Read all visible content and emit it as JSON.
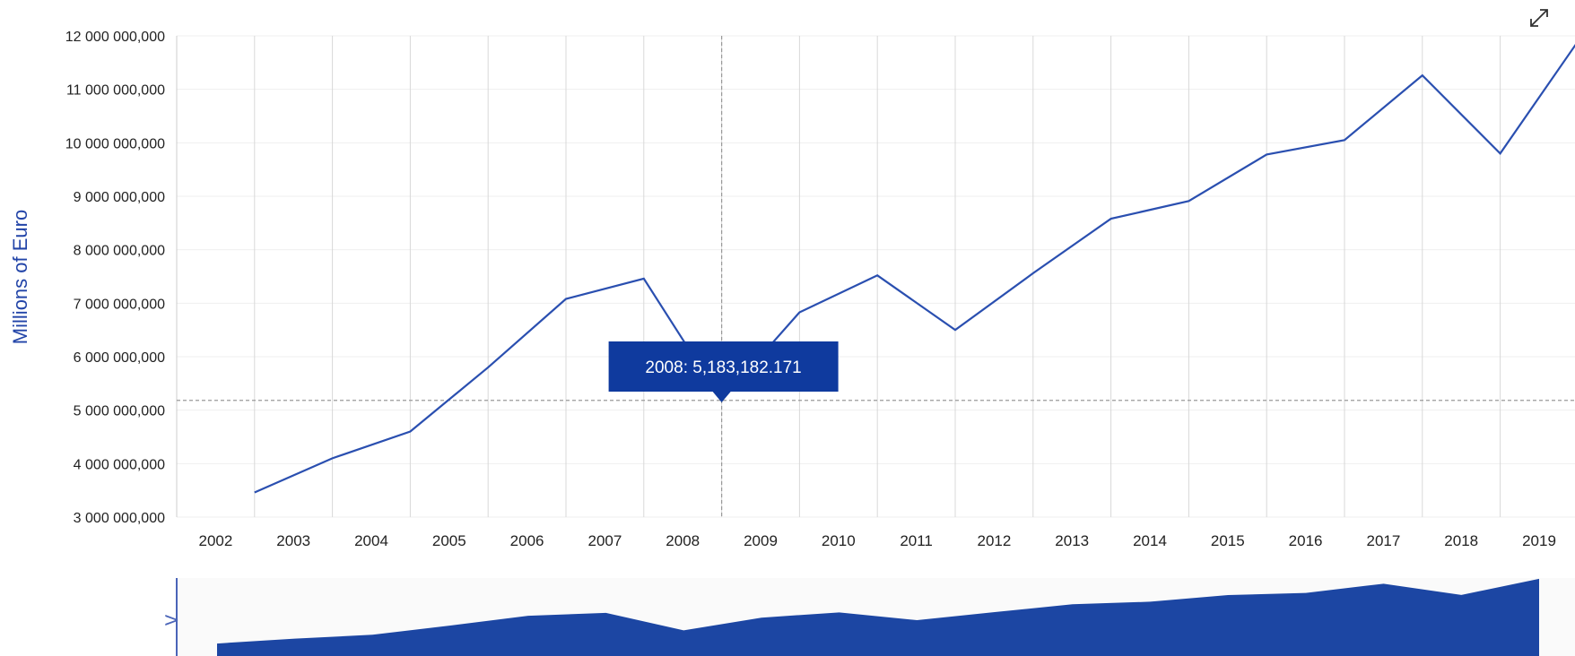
{
  "chart_data": {
    "type": "line",
    "ylabel": "Millions of Euro",
    "ylim": [
      3000000000,
      12000000000
    ],
    "y_ticks": [
      "3 000 000,000",
      "4 000 000,000",
      "5 000 000,000",
      "6 000 000,000",
      "7 000 000,000",
      "8 000 000,000",
      "9 000 000,000",
      "10 000 000,000",
      "11 000 000,000",
      "12 000 000,000"
    ],
    "x": [
      2002,
      2003,
      2004,
      2005,
      2006,
      2007,
      2008,
      2009,
      2010,
      2011,
      2012,
      2013,
      2014,
      2015,
      2016,
      2017,
      2018,
      2019
    ],
    "values": [
      3460000000,
      4100000000,
      4600000000,
      5800000000,
      7080000000,
      7460000000,
      5183182171,
      6830000000,
      7520000000,
      6500000000,
      7560000000,
      8580000000,
      8910000000,
      9780000000,
      10050000000,
      11260000000,
      9800000000,
      11900000000
    ],
    "grid": true,
    "color": "#2a4fb0",
    "tooltip": {
      "text": "2008: 5,183,182.171",
      "bg": "#0f3a9e"
    }
  },
  "navigator": {
    "handle_glyph": ">",
    "color": "#1c46a3"
  },
  "controls": {
    "expand_icon": "expand-icon"
  }
}
